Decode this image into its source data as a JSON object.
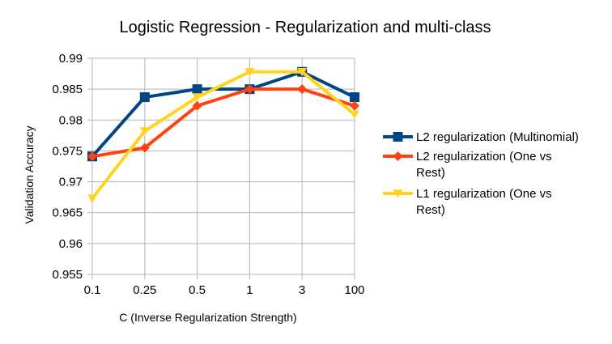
{
  "chart_data": {
    "type": "line",
    "title": "Logistic Regression - Regularization and multi-class",
    "xlabel": "C (Inverse Regularization Strength)",
    "ylabel": "Validation Accuracy",
    "categories": [
      "0.1",
      "0.25",
      "0.5",
      "1",
      "3",
      "100"
    ],
    "ylim": [
      0.955,
      0.99
    ],
    "ytick_labels": [
      "0.955",
      "0.96",
      "0.965",
      "0.97",
      "0.975",
      "0.98",
      "0.985",
      "0.99"
    ],
    "grid": true,
    "legend_position": "right",
    "series": [
      {
        "name": "L2 regularization (Multinomial)",
        "name_lines": [
          "L2 regularization (Multinomial)"
        ],
        "color": "#004586",
        "marker": "square",
        "values": [
          0.9741,
          0.9837,
          0.985,
          0.985,
          0.9878,
          0.9837
        ]
      },
      {
        "name": "L2 regularization (One vs Rest)",
        "name_lines": [
          "L2 regularization (One vs",
          "Rest)"
        ],
        "color": "#ff420e",
        "marker": "diamond",
        "values": [
          0.9741,
          0.9755,
          0.9823,
          0.985,
          0.985,
          0.9823
        ]
      },
      {
        "name": "L1 regularization (One vs Rest)",
        "name_lines": [
          "L1 regularization (One vs",
          "Rest)"
        ],
        "color": "#ffd320",
        "marker": "triangle-down",
        "values": [
          0.9673,
          0.9782,
          0.9837,
          0.9878,
          0.9878,
          0.9809
        ]
      }
    ]
  }
}
